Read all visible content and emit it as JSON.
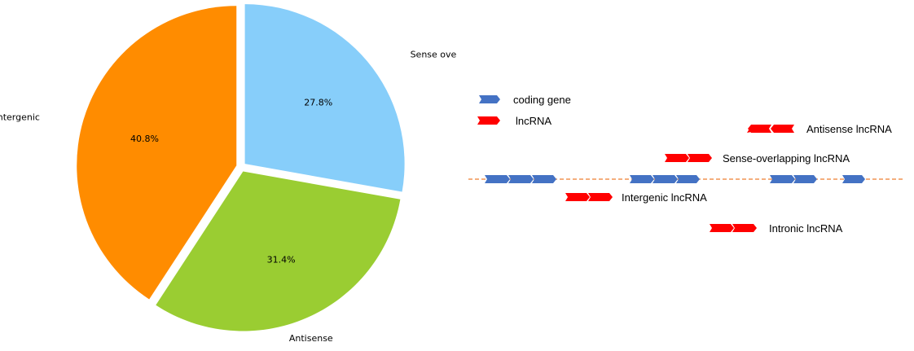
{
  "chart_data": {
    "type": "pie",
    "slices": [
      {
        "label": "Sense overlapping",
        "value": 27.8,
        "pct_label": "27.8%",
        "color": "#87CEFA"
      },
      {
        "label": "Antisense",
        "value": 31.4,
        "pct_label": "31.4%",
        "color": "#9ACD32"
      },
      {
        "label": "intergenic",
        "value": 40.8,
        "pct_label": "40.8%",
        "color": "#FF8C00"
      }
    ],
    "title": ""
  },
  "diagram": {
    "legend": [
      {
        "label": "coding gene",
        "icon": "blue-arrow-icon",
        "color": "#4472C4"
      },
      {
        "label": "lncRNA",
        "icon": "red-arrow-icon",
        "color": "#FF0000"
      }
    ],
    "categories": {
      "antisense": "Antisense lncRNA",
      "sense_overlapping": "Sense-overlapping lncRNA",
      "intergenic": "Intergenic lncRNA",
      "intronic": "Intronic lncRNA"
    },
    "genome_line_color": "#ED7D31"
  }
}
